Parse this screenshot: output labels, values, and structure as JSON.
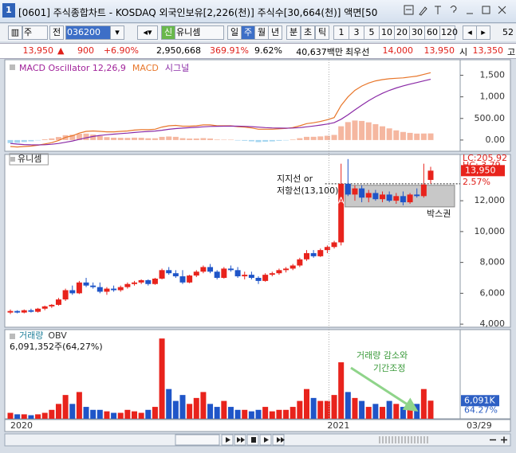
{
  "window": {
    "title": "[0601] 주식종합차트 - KOSDAQ 외국인보유[2,226(천)] 주식수[30,664(천)] 액면[50",
    "icon": "1"
  },
  "toolbar": {
    "period_unit": "주",
    "range": "전",
    "code": "036200",
    "badge": "신",
    "name": "유니셈",
    "periods": [
      "일",
      "주",
      "월",
      "년"
    ],
    "intraday": [
      "분",
      "초",
      "틱"
    ],
    "selected": 1,
    "intervals": [
      "1",
      "3",
      "5",
      "10",
      "20",
      "30",
      "60",
      "120"
    ],
    "count": "52"
  },
  "quote": [
    "13,950",
    "900",
    "+6.90%",
    "2,950,668",
    "369.91%",
    "9.62%",
    "40,637백만",
    "최우선",
    "14,000",
    "13,950",
    "시",
    "13,350",
    "고"
  ],
  "chart_data": [
    {
      "type": "macd",
      "series": [
        {
          "name": "MACD Oscillator 12,26,9",
          "kind": "bar",
          "color": "#f5b7a0",
          "negative_color": "#a3d5f0",
          "label_color": "#a0229a",
          "values": [
            -70,
            -65,
            -45,
            -30,
            -8,
            18,
            38,
            70,
            112,
            122,
            146,
            149,
            127,
            94,
            67,
            54,
            51,
            49,
            55,
            52,
            41,
            41,
            73,
            82,
            74,
            43,
            34,
            35,
            44,
            35,
            12,
            9,
            7,
            -11,
            -17,
            -30,
            -48,
            -38,
            -31,
            -17,
            -5,
            12,
            42,
            74,
            75,
            84,
            99,
            119,
            319,
            415,
            452,
            442,
            410,
            368,
            318,
            270,
            224,
            187,
            166,
            149,
            151,
            153
          ]
        },
        {
          "name": "MACD",
          "kind": "line",
          "color": "#e8762a",
          "values": [
            -150,
            -160,
            -150,
            -140,
            -120,
            -90,
            -60,
            -10,
            60,
            100,
            160,
            200,
            210,
            200,
            190,
            190,
            200,
            210,
            230,
            240,
            240,
            250,
            300,
            330,
            340,
            320,
            320,
            330,
            350,
            350,
            330,
            330,
            330,
            310,
            300,
            280,
            250,
            250,
            250,
            260,
            270,
            290,
            330,
            380,
            400,
            430,
            470,
            520,
            800,
            1000,
            1150,
            1250,
            1320,
            1370,
            1400,
            1420,
            1430,
            1440,
            1460,
            1480,
            1520,
            1560
          ]
        },
        {
          "name": "시그널",
          "kind": "line",
          "color": "#8a2aa6",
          "values": [
            -80,
            -95,
            -105,
            -110,
            -112,
            -108,
            -98,
            -80,
            -52,
            -22,
            14,
            51,
            83,
            106,
            123,
            136,
            149,
            161,
            175,
            188,
            199,
            209,
            227,
            248,
            266,
            277,
            286,
            295,
            306,
            315,
            318,
            321,
            323,
            321,
            317,
            310,
            298,
            288,
            281,
            277,
            275,
            278,
            288,
            306,
            325,
            346,
            371,
            401,
            481,
            585,
            698,
            808,
            910,
            1002,
            1082,
            1150,
            1206,
            1253,
            1294,
            1331,
            1369,
            1407
          ]
        }
      ],
      "ylim": [
        -260,
        1860
      ],
      "yticks": [
        {
          "value": 1500,
          "label": "1,500"
        },
        {
          "value": 1000,
          "label": "1,000"
        },
        {
          "value": 500,
          "label": "500.00"
        },
        {
          "value": 0,
          "label": "0.00"
        }
      ]
    },
    {
      "type": "candlestick",
      "title": "유니셈",
      "up_color": "#e8231c",
      "down_color": "#1f55c8",
      "open": [
        4750,
        4850,
        4750,
        4900,
        4800,
        5000,
        5150,
        5250,
        5600,
        6200,
        6000,
        6700,
        6500,
        6400,
        6100,
        6300,
        6200,
        6400,
        6600,
        6700,
        6850,
        6600,
        6950,
        7500,
        7300,
        7100,
        6700,
        7150,
        7400,
        7700,
        7400,
        7000,
        7600,
        7500,
        7100,
        7200,
        7000,
        6800,
        7200,
        7300,
        7500,
        7600,
        7800,
        8200,
        8600,
        8400,
        8800,
        9000,
        9300,
        13100,
        12400,
        12800,
        12200,
        12500,
        12100,
        12400,
        12000,
        12300,
        11900,
        12400,
        12300,
        13350
      ],
      "high": [
        4950,
        4900,
        4950,
        5000,
        5050,
        5200,
        5300,
        5700,
        6300,
        6500,
        6800,
        7000,
        6700,
        6700,
        6400,
        6500,
        6500,
        6700,
        6800,
        6900,
        6900,
        7000,
        7600,
        7700,
        7500,
        7500,
        7200,
        7500,
        7800,
        7900,
        7500,
        7700,
        7800,
        7700,
        7400,
        7400,
        7100,
        7300,
        7400,
        7600,
        7700,
        7900,
        8300,
        8800,
        8800,
        8900,
        9100,
        9400,
        14400,
        14700,
        13000,
        13000,
        12700,
        12700,
        12600,
        12600,
        12500,
        12600,
        12500,
        12800,
        14400,
        14200
      ],
      "low": [
        4650,
        4700,
        4700,
        4750,
        4750,
        4900,
        5050,
        5200,
        5500,
        5900,
        5950,
        6400,
        6300,
        6000,
        5900,
        6100,
        6100,
        6300,
        6500,
        6600,
        6500,
        6550,
        6900,
        7200,
        7000,
        6600,
        6650,
        7050,
        7300,
        7300,
        6900,
        6950,
        7400,
        7000,
        6900,
        6900,
        6600,
        6750,
        7100,
        7200,
        7350,
        7500,
        7700,
        8100,
        8300,
        8350,
        8600,
        8900,
        9100,
        12300,
        12000,
        11900,
        11900,
        12000,
        11900,
        11900,
        11800,
        11700,
        11800,
        12200,
        12200,
        13100
      ],
      "close": [
        4850,
        4750,
        4900,
        4800,
        5000,
        5150,
        5250,
        5600,
        6200,
        6000,
        6700,
        6500,
        6400,
        6100,
        6300,
        6200,
        6400,
        6600,
        6700,
        6850,
        6600,
        6950,
        7500,
        7300,
        7100,
        6700,
        7150,
        7400,
        7700,
        7400,
        7000,
        7600,
        7500,
        7100,
        7200,
        7000,
        6800,
        7200,
        7300,
        7500,
        7600,
        7800,
        8200,
        8600,
        8400,
        8800,
        9000,
        9300,
        13100,
        12400,
        12800,
        12200,
        12500,
        12100,
        12400,
        12000,
        12300,
        11900,
        12400,
        12300,
        13050,
        13950
      ],
      "ylim": [
        3800,
        15000
      ],
      "yticks": [
        {
          "value": 12000,
          "label": "12,000"
        },
        {
          "value": 10000,
          "label": "10,000"
        },
        {
          "value": 8000,
          "label": "8,000"
        },
        {
          "value": 6000,
          "label": "6,000"
        },
        {
          "value": 4000,
          "label": "4,000"
        }
      ],
      "current": {
        "value": 13950,
        "label": "13,950"
      },
      "side_labels": [
        "LC:205.92",
        "HC: 3.79",
        "2.57%"
      ],
      "support": {
        "value": 13100,
        "labels": [
          "지지선 or",
          "저항선(13,100)"
        ]
      },
      "box": {
        "low": 11600,
        "high": 13000,
        "label": "박스권"
      },
      "marker": {
        "index": 48,
        "label": "A"
      }
    },
    {
      "type": "bar",
      "series": [
        {
          "name": "거래량",
          "values": [
            2000000,
            1500000,
            1500000,
            1200000,
            1500000,
            2000000,
            3000000,
            5000000,
            8000000,
            5000000,
            9000000,
            4000000,
            3000000,
            3000000,
            2500000,
            2000000,
            2000000,
            3000000,
            2500000,
            2000000,
            3000000,
            4000000,
            27000000,
            10000000,
            6000000,
            8000000,
            5000000,
            7000000,
            9000000,
            5000000,
            4000000,
            6000000,
            4000000,
            3000000,
            3000000,
            2500000,
            3000000,
            4000000,
            2500000,
            3000000,
            3000000,
            4000000,
            6000000,
            10000000,
            7000000,
            6000000,
            6000000,
            8000000,
            19000000,
            9000000,
            7000000,
            6000000,
            4000000,
            5000000,
            4000000,
            6000000,
            5000000,
            4000000,
            3000000,
            5000000,
            10000000,
            6091352
          ]
        }
      ],
      "indicator": "OBV",
      "subtitle": "6,091,352주(64,27%)",
      "ylim": [
        0,
        30000000
      ],
      "last": {
        "value": 6091352,
        "label": "6,091K"
      },
      "ratio_label": "64.27%",
      "annotation": [
        "거래량 감소와",
        "기간조정"
      ],
      "categories": [
        "2020",
        null,
        null,
        null,
        null,
        null,
        null,
        null,
        null,
        null,
        null,
        null,
        null,
        null,
        null,
        null,
        null,
        null,
        null,
        null,
        null,
        null,
        null,
        null,
        null,
        null,
        null,
        null,
        null,
        null,
        null,
        null,
        null,
        null,
        null,
        null,
        null,
        null,
        null,
        null,
        null,
        null,
        null,
        null,
        null,
        null,
        "2021",
        null,
        null,
        null,
        null,
        null,
        null,
        null,
        null,
        null,
        null,
        null,
        null,
        null,
        null,
        null
      ],
      "date_label": "03/29"
    }
  ]
}
